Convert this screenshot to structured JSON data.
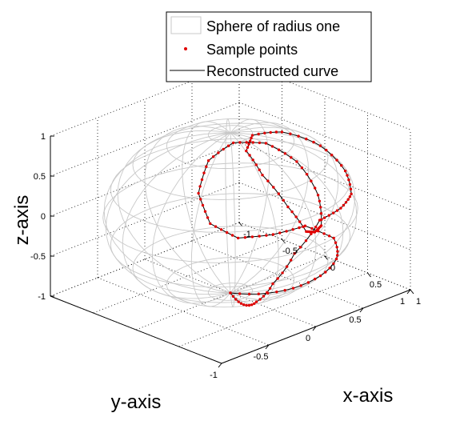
{
  "chart_data": {
    "type": "scatter",
    "projection": "3d",
    "axes": {
      "xlabel": "x-axis",
      "ylabel": "y-axis",
      "zlabel": "z-axis",
      "xlim": [
        -1,
        1
      ],
      "ylim": [
        -1,
        1
      ],
      "zlim": [
        -1,
        1
      ],
      "x_ticks": [
        "-1",
        "-0.5",
        "0",
        "0.5",
        "1"
      ],
      "y_ticks": [
        "-1",
        "-0.5",
        "0",
        "0.5",
        "1"
      ],
      "z_ticks": [
        "-1",
        "-0.5",
        "0",
        "0.5",
        "1"
      ],
      "grid": true
    },
    "sphere": {
      "name": "Sphere of radius one",
      "radius": 1,
      "color": "#c8c8c8"
    },
    "series": [
      {
        "name": "Sample points",
        "marker": "dot",
        "color": "#e00000"
      },
      {
        "name": "Reconstructed curve",
        "line": "solid",
        "color": "#000000"
      }
    ],
    "legend": {
      "position": "top",
      "items": [
        {
          "label": "Sphere of radius one",
          "kind": "patch"
        },
        {
          "label": "Sample points",
          "kind": "marker"
        },
        {
          "label": "Reconstructed curve",
          "kind": "line"
        }
      ]
    },
    "curve_points": [
      [
        0.0,
        0.0,
        -1.0
      ],
      [
        0.348,
        -0.174,
        -0.921
      ],
      [
        0.646,
        -0.31,
        -0.697
      ],
      [
        0.867,
        -0.337,
        -0.366
      ],
      [
        0.978,
        -0.208,
        0.0
      ],
      [
        0.958,
        0.077,
        0.276
      ],
      [
        0.894,
        0.358,
        0.27
      ],
      [
        0.751,
        0.6,
        0.277
      ],
      [
        0.553,
        0.715,
        0.427
      ],
      [
        0.339,
        0.646,
        0.685
      ],
      [
        0.173,
        0.389,
        0.905
      ],
      [
        0.146,
        0.101,
        0.984
      ],
      [
        0.3,
        -0.104,
        0.948
      ],
      [
        0.574,
        -0.182,
        0.798
      ],
      [
        0.848,
        -0.16,
        0.505
      ],
      [
        0.974,
        -0.08,
        0.213
      ],
      [
        0.985,
        0.0,
        0.174
      ],
      [
        0.974,
        0.08,
        0.213
      ],
      [
        0.848,
        0.16,
        0.505
      ],
      [
        0.574,
        0.182,
        0.798
      ],
      [
        0.3,
        0.104,
        0.948
      ],
      [
        0.146,
        -0.101,
        0.984
      ],
      [
        0.173,
        -0.389,
        0.905
      ],
      [
        0.339,
        -0.646,
        0.685
      ],
      [
        0.553,
        -0.715,
        0.427
      ],
      [
        0.751,
        -0.6,
        0.277
      ],
      [
        0.894,
        -0.358,
        0.27
      ],
      [
        0.958,
        -0.077,
        0.276
      ],
      [
        0.978,
        0.208,
        0.0
      ],
      [
        0.867,
        0.337,
        -0.366
      ],
      [
        0.646,
        0.31,
        -0.697
      ],
      [
        0.348,
        0.174,
        -0.921
      ],
      [
        0.0,
        0.0,
        -1.0
      ]
    ]
  }
}
